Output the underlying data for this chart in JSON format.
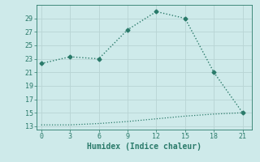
{
  "xlabel": "Humidex (Indice chaleur)",
  "x_main": [
    0,
    3,
    6,
    9,
    12,
    15,
    18,
    21
  ],
  "y_main": [
    22.3,
    23.3,
    23.0,
    27.3,
    30.0,
    29.0,
    21.0,
    15.0
  ],
  "x_flat": [
    0,
    3,
    6,
    9,
    12,
    15,
    18,
    21
  ],
  "y_flat": [
    13.2,
    13.2,
    13.4,
    13.7,
    14.1,
    14.5,
    14.8,
    15.0
  ],
  "line_color": "#2a7a6a",
  "bg_color": "#ceeaea",
  "grid_color_major": "#b8d4d4",
  "grid_color_minor": "#d0e6e6",
  "xlim": [
    -0.5,
    22
  ],
  "ylim": [
    12.5,
    31
  ],
  "yticks": [
    13,
    15,
    17,
    19,
    21,
    23,
    25,
    27,
    29
  ],
  "xticks": [
    0,
    3,
    6,
    9,
    12,
    15,
    18,
    21
  ],
  "xlabel_fontsize": 7,
  "tick_fontsize": 6,
  "marker_main": "D",
  "marker_size": 2.5
}
